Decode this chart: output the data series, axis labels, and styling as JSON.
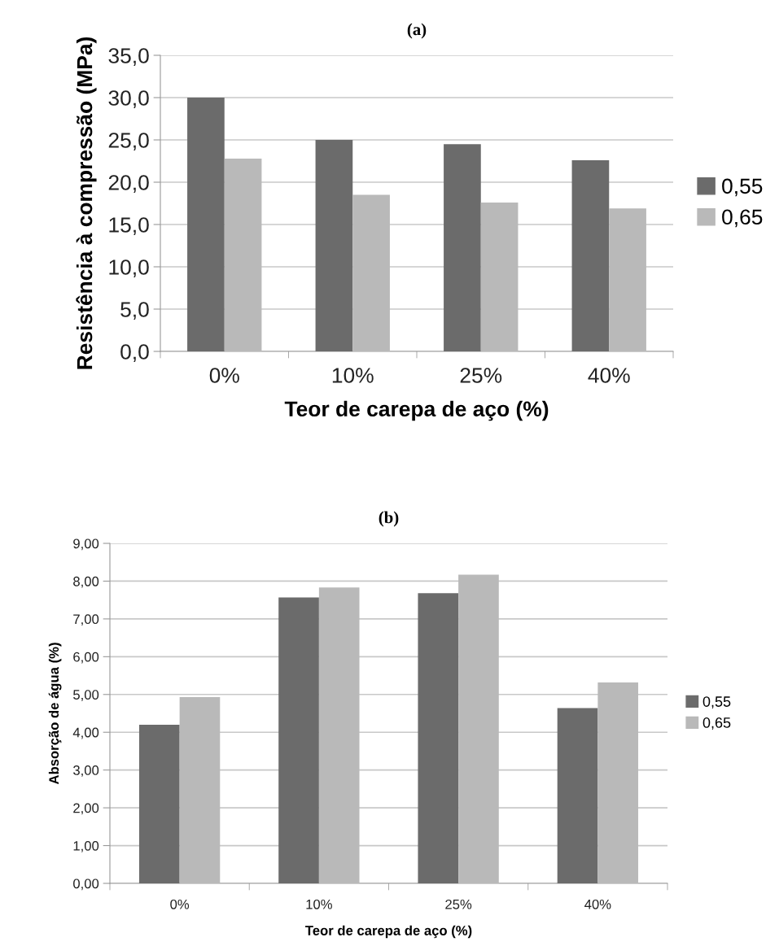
{
  "chart_data": [
    {
      "type": "bar",
      "title": "(a)",
      "xlabel": "Teor de carepa de aço (%)",
      "ylabel": "Resistência à compressão (MPa)",
      "categories": [
        "0%",
        "10%",
        "25%",
        "40%"
      ],
      "series": [
        {
          "name": "0,55",
          "color": "#6b6b6b",
          "values": [
            30.0,
            25.0,
            24.5,
            22.6
          ]
        },
        {
          "name": "0,65",
          "color": "#b9b9b9",
          "values": [
            22.8,
            18.5,
            17.6,
            16.9
          ]
        }
      ],
      "ylim": [
        0,
        35
      ],
      "yticks": [
        {
          "value": 0,
          "label": "0,0"
        },
        {
          "value": 5,
          "label": "5,0"
        },
        {
          "value": 10,
          "label": "10,0"
        },
        {
          "value": 15,
          "label": "15,0"
        },
        {
          "value": 20,
          "label": "20,0"
        },
        {
          "value": 25,
          "label": "25,0"
        },
        {
          "value": 30,
          "label": "30,0"
        },
        {
          "value": 35,
          "label": "35,0"
        }
      ],
      "grid": "y",
      "legend": "right"
    },
    {
      "type": "bar",
      "title": "(b)",
      "xlabel": "Teor de carepa de aço (%)",
      "ylabel": "Absorção de água (%)",
      "categories": [
        "0%",
        "10%",
        "25%",
        "40%"
      ],
      "series": [
        {
          "name": "0,55",
          "color": "#6b6b6b",
          "values": [
            4.2,
            7.57,
            7.68,
            4.64
          ]
        },
        {
          "name": "0,65",
          "color": "#b9b9b9",
          "values": [
            4.93,
            7.83,
            8.17,
            5.32
          ]
        }
      ],
      "ylim": [
        0,
        9
      ],
      "yticks": [
        {
          "value": 0,
          "label": "0,00"
        },
        {
          "value": 1,
          "label": "1,00"
        },
        {
          "value": 2,
          "label": "2,00"
        },
        {
          "value": 3,
          "label": "3,00"
        },
        {
          "value": 4,
          "label": "4,00"
        },
        {
          "value": 5,
          "label": "5,00"
        },
        {
          "value": 6,
          "label": "6,00"
        },
        {
          "value": 7,
          "label": "7,00"
        },
        {
          "value": 8,
          "label": "8,00"
        },
        {
          "value": 9,
          "label": "9,00"
        }
      ],
      "grid": "y",
      "legend": "right"
    }
  ]
}
